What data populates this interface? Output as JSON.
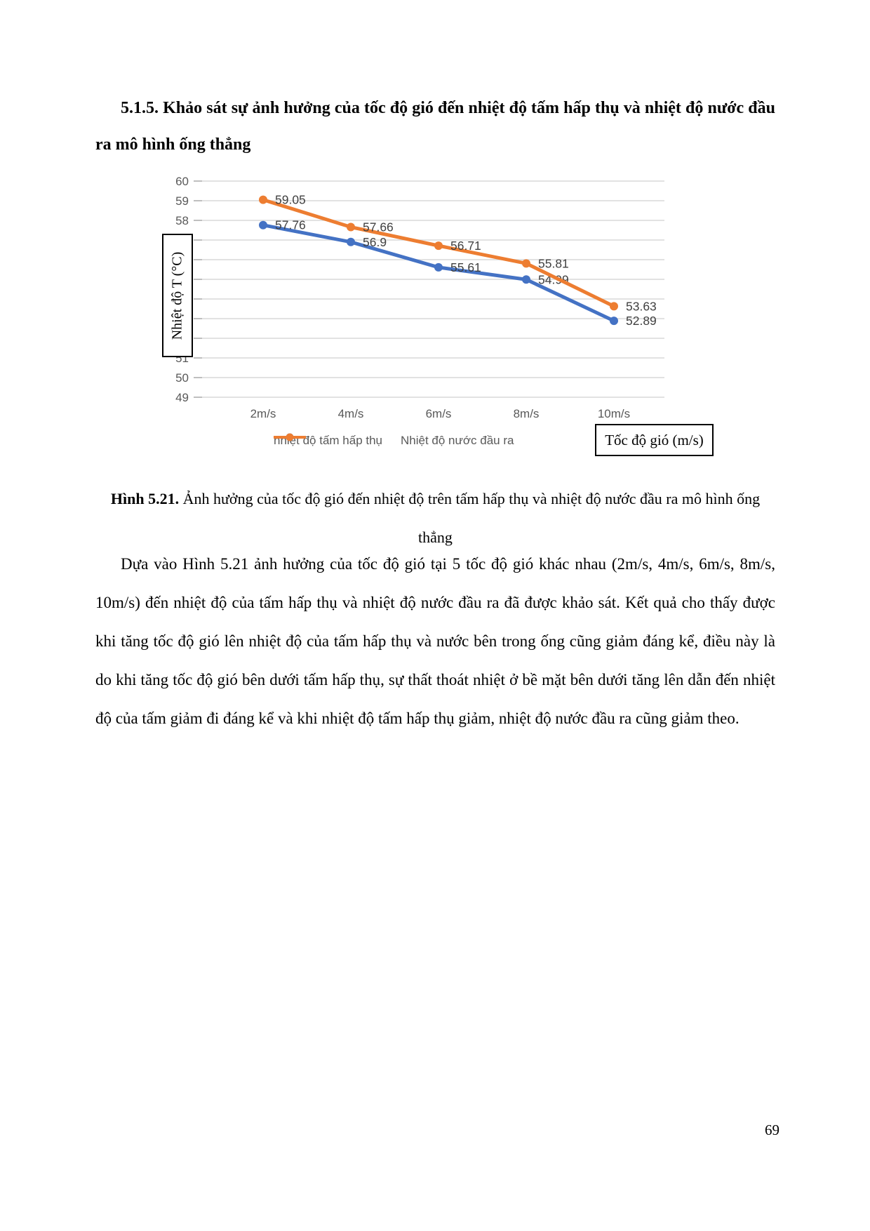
{
  "page": {
    "number": "69"
  },
  "heading": "5.1.5. Khảo sát sự ảnh hưởng của tốc độ gió đến nhiệt độ tấm hấp thụ và nhiệt độ nước đầu ra mô hình ống thẳng",
  "figure": {
    "caption_label": "Hình 5.21.",
    "caption_text": " Ảnh hưởng của tốc độ gió đến nhiệt độ trên tấm hấp thụ và nhiệt độ nước đầu ra mô hình ống thẳng"
  },
  "paragraph": "Dựa vào Hình 5.21 ảnh hưởng của tốc độ gió tại 5 tốc độ gió khác nhau (2m/s, 4m/s, 6m/s, 8m/s, 10m/s) đến nhiệt độ của tấm hấp thụ và nhiệt độ nước đầu ra đã được khảo sát. Kết quả cho thấy được khi tăng tốc độ gió lên nhiệt độ của tấm hấp thụ và nước bên trong ống cũng giảm đáng kể, điều này là do khi tăng tốc độ gió bên dưới tấm hấp thụ, sự thất thoát nhiệt ở bề mặt bên dưới tăng lên dẫn đến nhiệt độ của tấm giảm đi đáng kể và khi nhiệt độ tấm hấp thụ giảm, nhiệt độ nước đầu ra cũng giảm theo.",
  "chart_data": {
    "type": "line",
    "categories": [
      "2m/s",
      "4m/s",
      "6m/s",
      "8m/s",
      "10m/s"
    ],
    "series": [
      {
        "name": "nhiệt độ  tấm hấp thụ",
        "color": "#4472C4",
        "values": [
          57.76,
          56.9,
          55.61,
          54.99,
          52.89
        ],
        "labels": [
          "57.76",
          "56.9",
          "55.61",
          "54.99",
          "52.89"
        ]
      },
      {
        "name": "Nhiệt độ nước đầu ra",
        "color": "#ED7D31",
        "values": [
          59.05,
          57.66,
          56.71,
          55.81,
          53.63
        ],
        "labels": [
          "59.05",
          "57.66",
          "56.71",
          "55.81",
          "53.63"
        ]
      }
    ],
    "title": "",
    "xlabel": "",
    "xlabel_box": "Tốc độ gió (m/s)",
    "ylabel": "Nhiệt độ T (°C)",
    "ylim": [
      49,
      60
    ],
    "ytick_step": 1,
    "grid": true,
    "legend_position": "bottom",
    "colors": {
      "gridline": "#D9D9D9",
      "tick_mark": "#BFBFBF",
      "tick_text": "#595959",
      "data_label": "#404040"
    }
  }
}
